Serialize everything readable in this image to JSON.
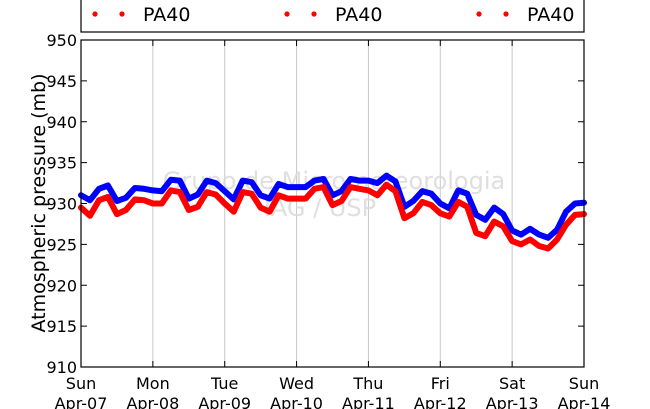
{
  "chart_data": {
    "type": "line",
    "title": "",
    "ylabel": "Atmospheric pressure (mb)",
    "xlabel": "",
    "ylim": [
      910,
      950
    ],
    "xlim": [
      0,
      7
    ],
    "yticks": [
      "910",
      "915",
      "920",
      "925",
      "930",
      "935",
      "940",
      "945",
      "950"
    ],
    "xticks": [
      {
        "day": "Sun",
        "date": "Apr-07"
      },
      {
        "day": "Mon",
        "date": "Apr-08"
      },
      {
        "day": "Tue",
        "date": "Apr-09"
      },
      {
        "day": "Wed",
        "date": "Apr-10"
      },
      {
        "day": "Thu",
        "date": "Apr-11"
      },
      {
        "day": "Fri",
        "date": "Apr-12"
      },
      {
        "day": "Sat",
        "date": "Apr-13"
      },
      {
        "day": "Sun",
        "date": "Apr-14"
      }
    ],
    "grid": "vertical",
    "legend_placement": "top",
    "legend": [
      {
        "label": "PA40",
        "color": "#ff0000"
      },
      {
        "label": "PA40",
        "color": "#ff0000"
      },
      {
        "label": "PA40",
        "color": "#ff0000"
      }
    ],
    "watermark": [
      "Grupo de Micrometeorologia",
      "IAG / USP"
    ],
    "series": [
      {
        "color": "#0000ff",
        "x": [
          0,
          0.125,
          0.25,
          0.375,
          0.5,
          0.625,
          0.75,
          0.875,
          1,
          1.125,
          1.25,
          1.375,
          1.5,
          1.625,
          1.75,
          1.875,
          2,
          2.125,
          2.25,
          2.375,
          2.5,
          2.625,
          2.75,
          2.875,
          3,
          3.125,
          3.25,
          3.375,
          3.5,
          3.625,
          3.75,
          3.875,
          4,
          4.125,
          4.25,
          4.375,
          4.5,
          4.625,
          4.75,
          4.875,
          5,
          5.125,
          5.25,
          5.375,
          5.5,
          5.625,
          5.75,
          5.875,
          6,
          6.125,
          6.25,
          6.375,
          6.5,
          6.625,
          6.75,
          6.875,
          7
        ],
        "values": [
          931.0,
          930.4,
          931.8,
          932.2,
          930.3,
          930.7,
          931.9,
          931.8,
          931.6,
          931.5,
          932.9,
          932.8,
          930.6,
          931.1,
          932.8,
          932.5,
          931.5,
          930.5,
          932.8,
          932.6,
          931.0,
          930.6,
          932.4,
          932.0,
          932.0,
          932.0,
          932.8,
          933.0,
          931.0,
          931.5,
          933.0,
          932.8,
          932.8,
          932.5,
          933.4,
          932.7,
          929.6,
          930.3,
          931.5,
          931.2,
          930.0,
          929.4,
          931.6,
          931.2,
          928.6,
          928.0,
          929.5,
          928.7,
          926.7,
          926.2,
          926.9,
          926.2,
          925.8,
          926.8,
          929.0,
          930.0,
          930.1
        ]
      },
      {
        "color": "#ff0000",
        "x": [
          0,
          0.125,
          0.25,
          0.375,
          0.5,
          0.625,
          0.75,
          0.875,
          1,
          1.125,
          1.25,
          1.375,
          1.5,
          1.625,
          1.75,
          1.875,
          2,
          2.125,
          2.25,
          2.375,
          2.5,
          2.625,
          2.75,
          2.875,
          3,
          3.125,
          3.25,
          3.375,
          3.5,
          3.625,
          3.75,
          3.875,
          4,
          4.125,
          4.25,
          4.375,
          4.5,
          4.625,
          4.75,
          4.875,
          5,
          5.125,
          5.25,
          5.375,
          5.5,
          5.625,
          5.75,
          5.875,
          6,
          6.125,
          6.25,
          6.375,
          6.5,
          6.625,
          6.75,
          6.875,
          7
        ],
        "values": [
          929.5,
          928.5,
          930.4,
          930.8,
          928.7,
          929.2,
          930.5,
          930.4,
          930.0,
          930.0,
          931.6,
          931.4,
          929.2,
          929.6,
          931.4,
          931.1,
          930.0,
          929.0,
          931.4,
          931.2,
          929.5,
          929.0,
          931.0,
          930.6,
          930.6,
          930.6,
          931.8,
          932.0,
          929.8,
          930.3,
          932.0,
          931.8,
          931.6,
          931.0,
          932.3,
          931.5,
          928.2,
          928.8,
          930.2,
          929.8,
          928.8,
          928.4,
          930.2,
          929.6,
          926.4,
          926.0,
          927.8,
          927.2,
          925.4,
          925.0,
          925.6,
          924.8,
          924.5,
          925.6,
          927.4,
          928.6,
          928.7
        ]
      }
    ]
  }
}
